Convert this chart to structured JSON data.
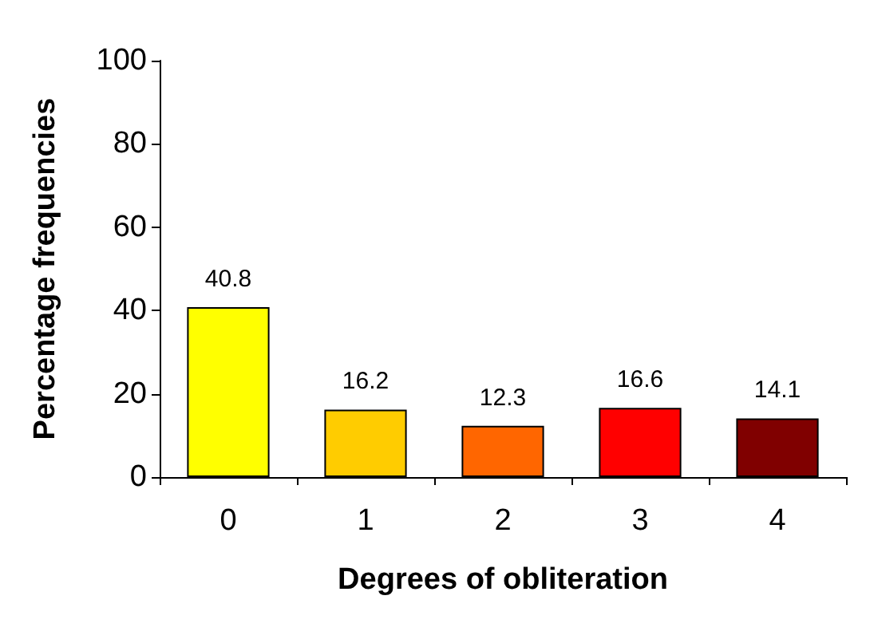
{
  "chart_data": {
    "type": "bar",
    "categories": [
      "0",
      "1",
      "2",
      "3",
      "4"
    ],
    "values": [
      40.8,
      16.2,
      12.3,
      16.6,
      14.1
    ],
    "colors": [
      "#ffff00",
      "#ffcc00",
      "#ff6600",
      "#ff0000",
      "#800000"
    ],
    "xlabel": "Degrees of obliteration",
    "ylabel": "Percentage frequencies",
    "ylim": [
      0,
      100
    ],
    "yticks": [
      0,
      20,
      40,
      60,
      80,
      100
    ],
    "grid": false,
    "data_labels": true
  }
}
